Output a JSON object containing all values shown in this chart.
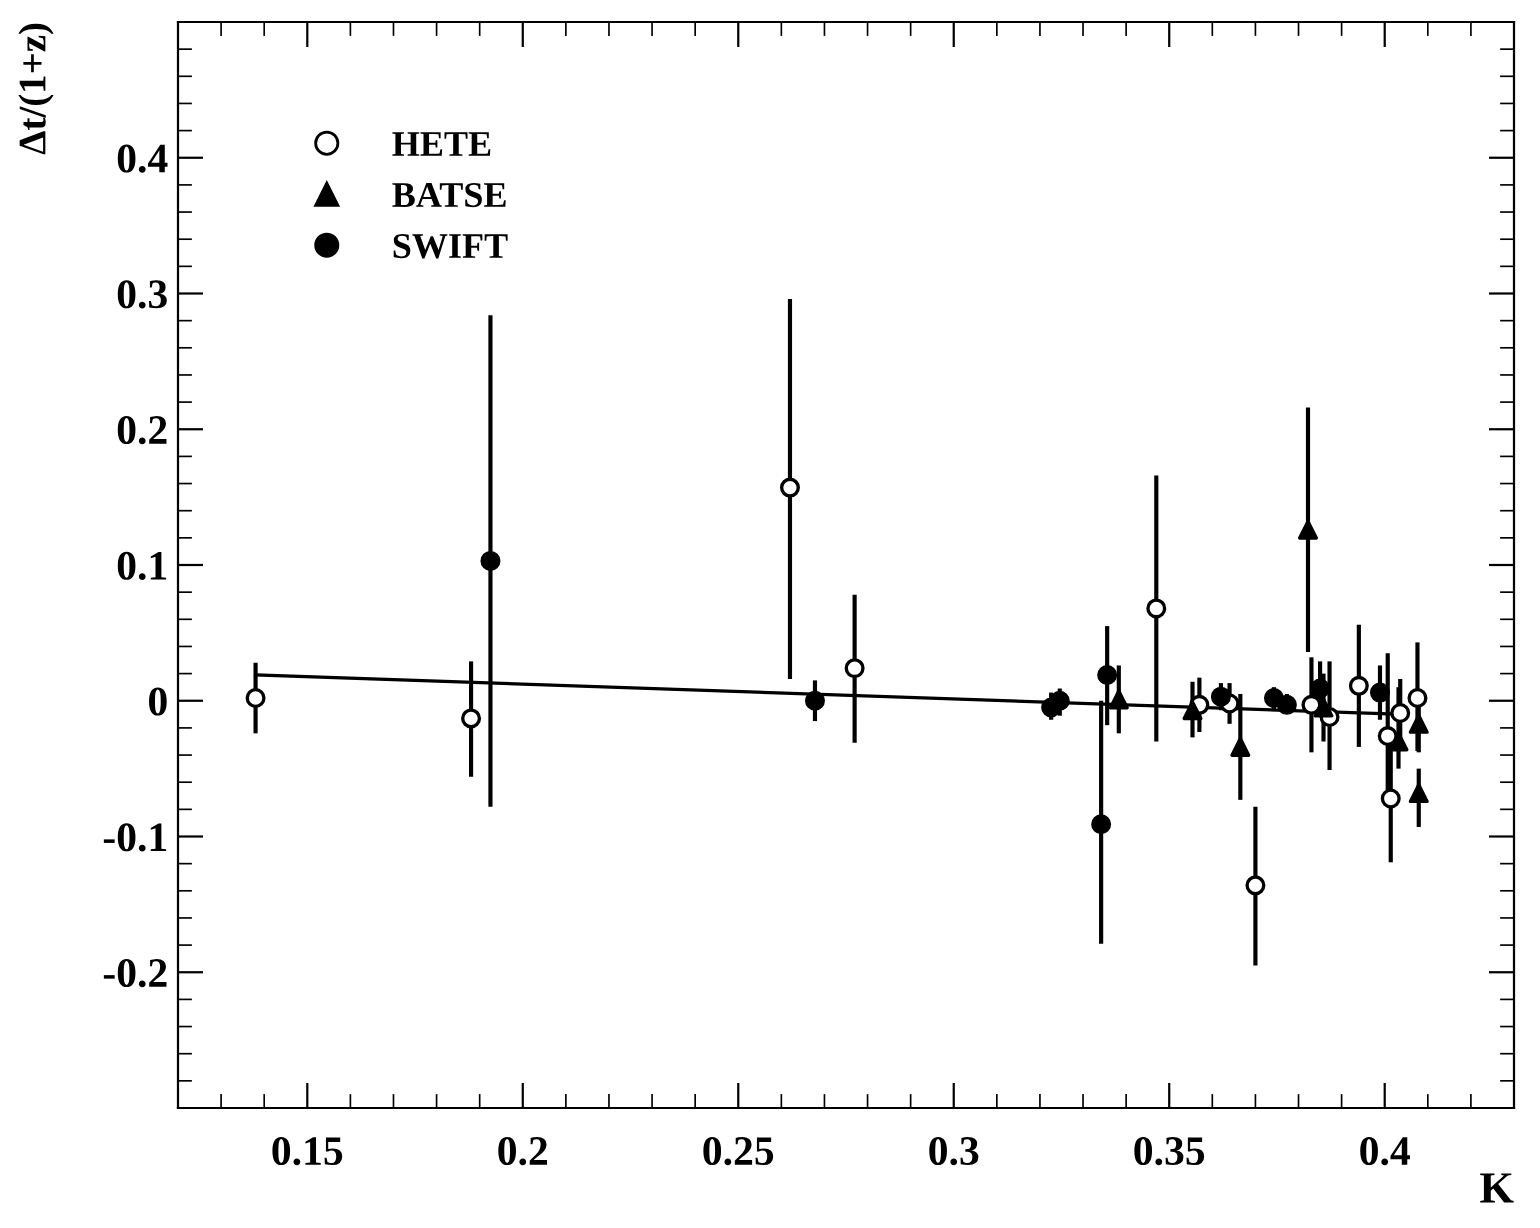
{
  "chart_data": {
    "type": "scatter",
    "xlabel": "K",
    "ylabel": "Δt/(1+z)",
    "xlim": [
      0.12,
      0.43
    ],
    "xticks": [
      0.15,
      0.2,
      0.25,
      0.3,
      0.35,
      0.4
    ],
    "ylim": [
      -0.3,
      0.5
    ],
    "yticks": [
      -0.2,
      -0.1,
      0,
      0.1,
      0.2,
      0.3,
      0.4
    ],
    "legend": "top left",
    "grid": false,
    "series": [
      {
        "name": "HETE",
        "color": "#ffffff",
        "marker": "circle",
        "x": [
          0.138,
          0.188,
          0.262,
          0.277,
          0.347,
          0.357,
          0.364,
          0.37,
          0.383,
          0.3872,
          0.394,
          0.4007,
          0.4014,
          0.4036,
          0.4076
        ],
        "values": [
          0.002,
          -0.013,
          0.157,
          0.024,
          0.068,
          -0.003,
          -0.002,
          -0.136,
          -0.003,
          -0.012,
          0.011,
          -0.026,
          -0.072,
          -0.009,
          0.002
        ],
        "errors": [
          [
            -0.024,
            0.028
          ],
          [
            -0.056,
            0.029
          ],
          [
            0.016,
            0.296
          ],
          [
            -0.031,
            0.078
          ],
          [
            -0.03,
            0.166
          ],
          [
            -0.023,
            0.017
          ],
          [
            -0.017,
            0.013
          ],
          [
            -0.195,
            -0.078
          ],
          [
            -0.038,
            0.032
          ],
          [
            -0.051,
            0.029
          ],
          [
            -0.034,
            0.056
          ],
          [
            -0.072,
            0.035
          ],
          [
            -0.119,
            -0.027
          ],
          [
            -0.034,
            0.016
          ],
          [
            -0.037,
            0.043
          ]
        ]
      },
      {
        "name": "BATSE",
        "color": "#000000",
        "marker": "triangle",
        "x": [
          0.3383,
          0.3554,
          0.3665,
          0.3822,
          0.3858,
          0.4032,
          0.4079,
          0.4079
        ],
        "values": [
          0.001,
          -0.007,
          -0.034,
          0.126,
          -0.005,
          -0.03,
          -0.017,
          -0.068
        ],
        "errors": [
          [
            -0.024,
            0.026
          ],
          [
            -0.027,
            0.014
          ],
          [
            -0.073,
            0.005
          ],
          [
            0.036,
            0.216
          ],
          [
            -0.03,
            0.02
          ],
          [
            -0.05,
            0.01
          ],
          [
            -0.038,
            0.002
          ],
          [
            -0.093,
            -0.05
          ]
        ]
      },
      {
        "name": "SWIFT",
        "color": "#000000",
        "marker": "circle",
        "x": [
          0.1925,
          0.2678,
          0.3226,
          0.3246,
          0.3342,
          0.3356,
          0.362,
          0.3743,
          0.3773,
          0.385,
          0.3989
        ],
        "values": [
          0.103,
          0.0,
          -0.005,
          0.0,
          -0.091,
          0.019,
          0.003,
          0.002,
          -0.003,
          0.009,
          0.006
        ],
        "errors": [
          [
            -0.078,
            0.284
          ],
          [
            -0.015,
            0.015
          ],
          [
            -0.014,
            0.006
          ],
          [
            -0.011,
            0.009
          ],
          [
            -0.179,
            0.0
          ],
          [
            -0.018,
            0.055
          ],
          [
            -0.007,
            0.013
          ],
          [
            -0.006,
            0.01
          ],
          [
            -0.008,
            0.005
          ],
          [
            -0.011,
            0.029
          ],
          [
            -0.014,
            0.026
          ]
        ]
      },
      {
        "type": "line",
        "color": "#000000",
        "marker": "none",
        "x": [
          0.138,
          0.404
        ],
        "values": [
          0.019,
          -0.01
        ]
      }
    ]
  }
}
